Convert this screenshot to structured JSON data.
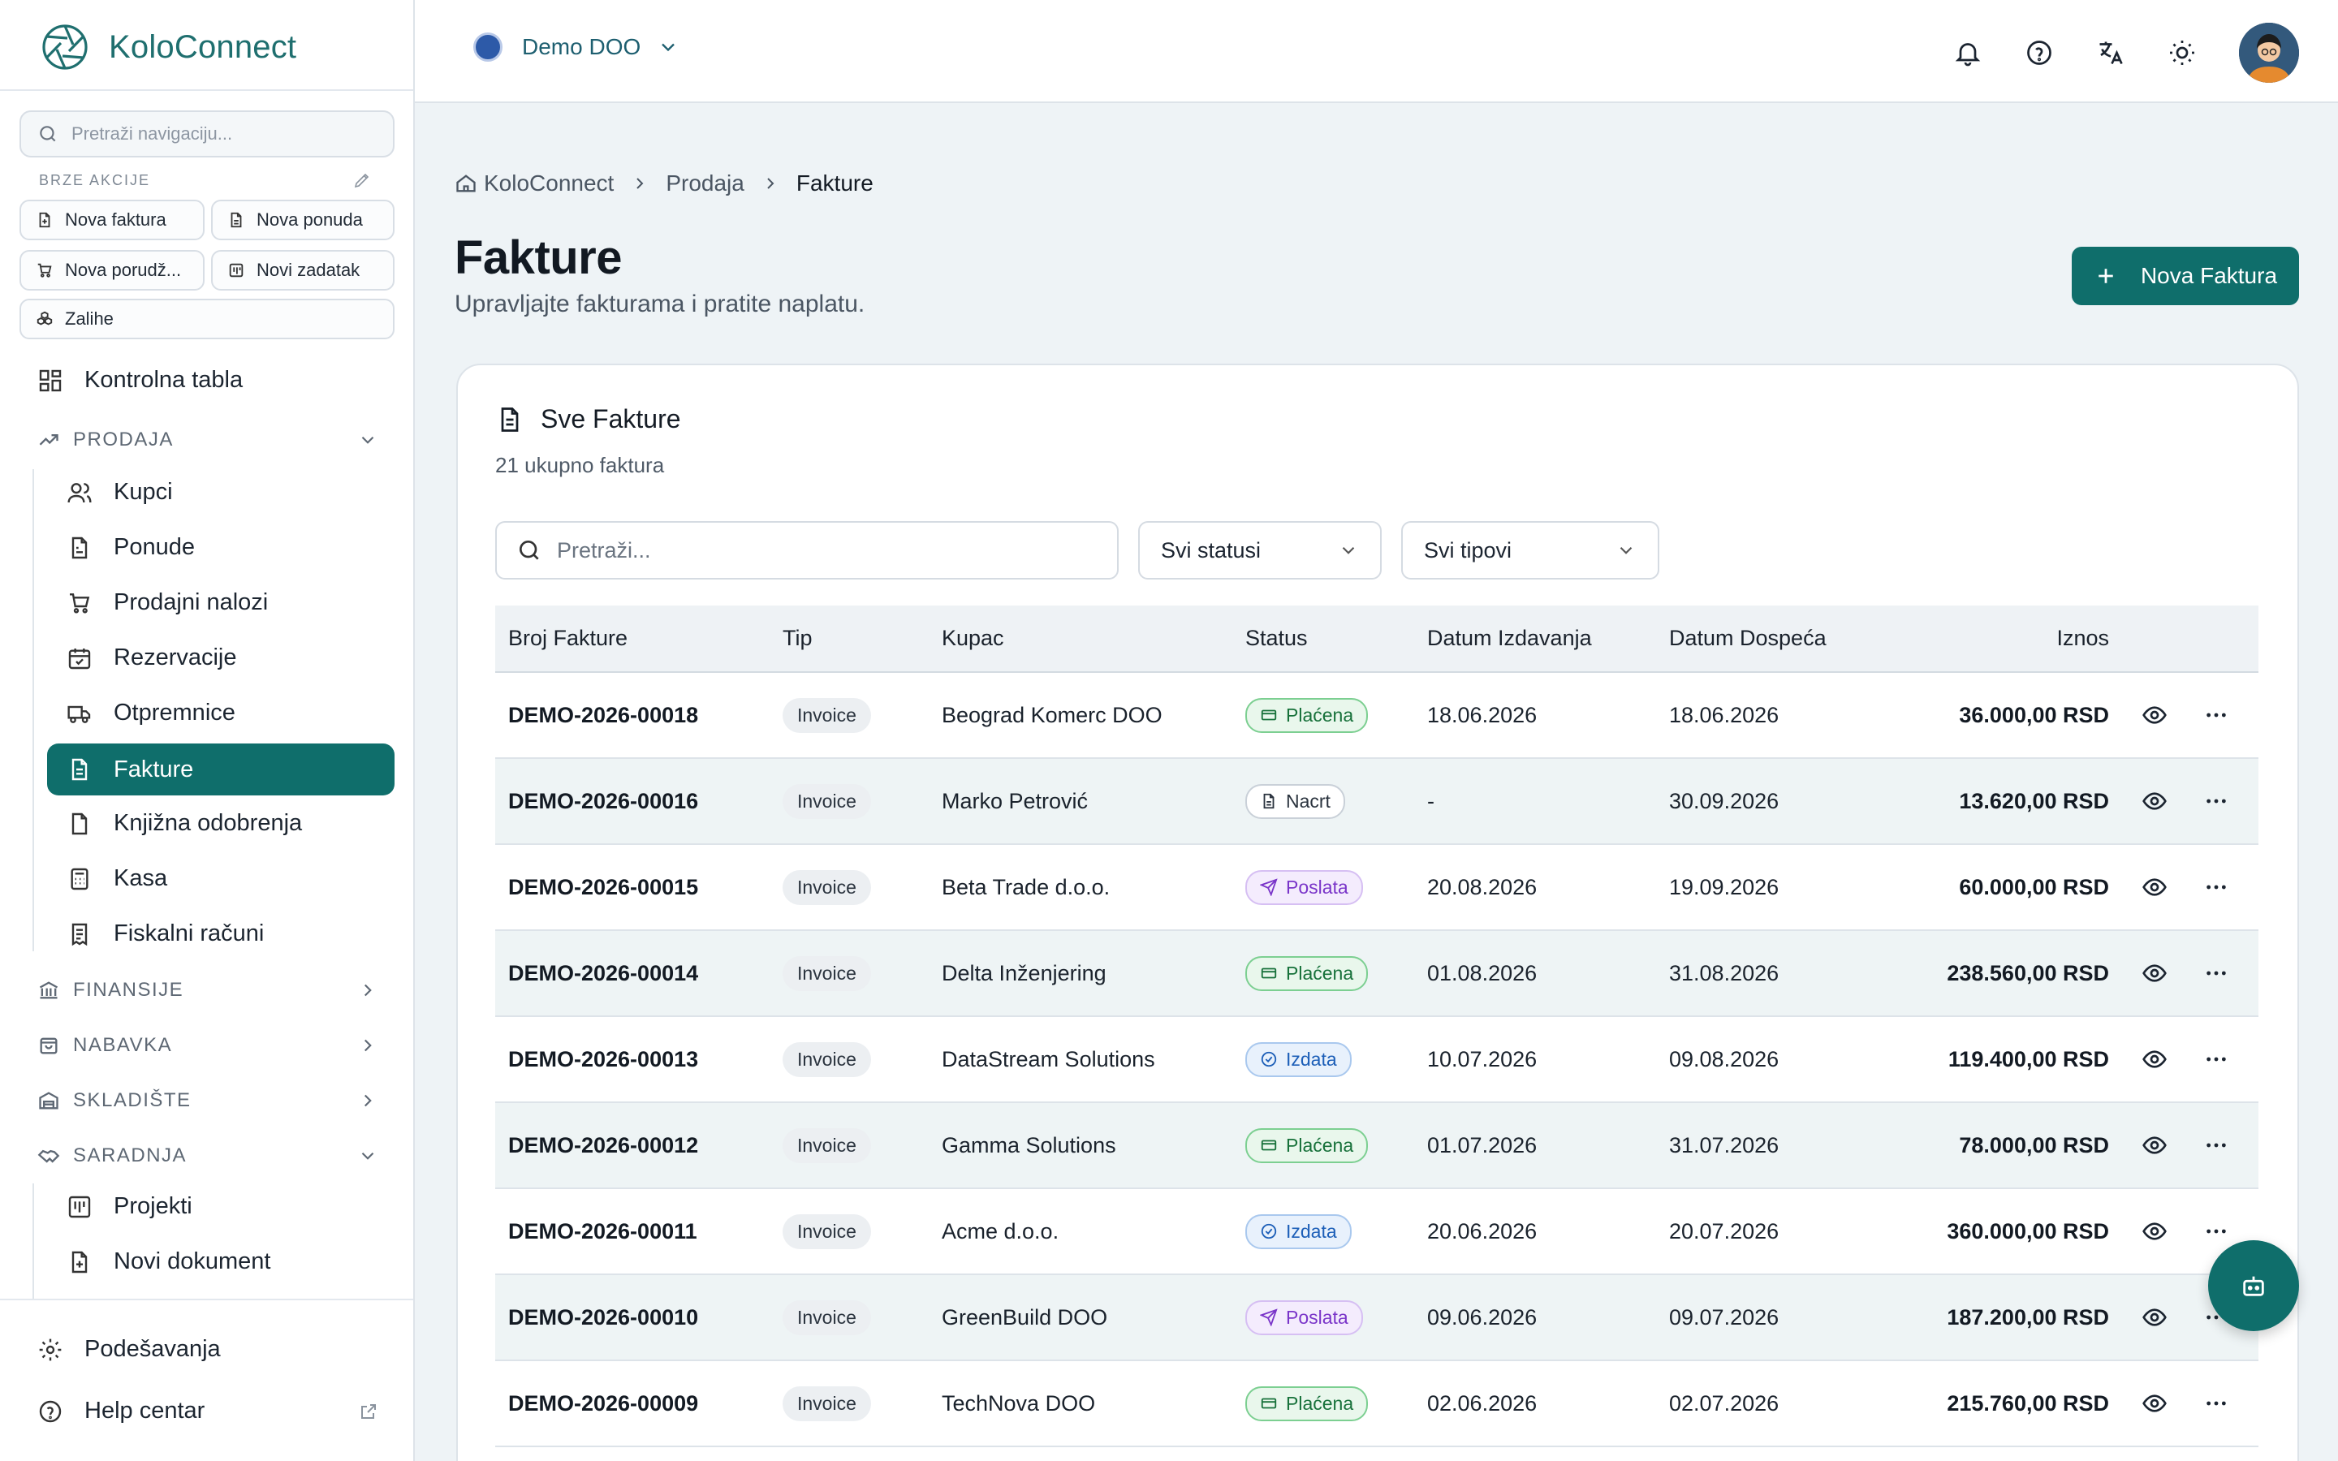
{
  "brand": {
    "name": "KoloConnect"
  },
  "sidebar": {
    "search_placeholder": "Pretraži navigaciju...",
    "quick_actions_label": "BRZE AKCIJE",
    "quick_actions": [
      {
        "label": "Nova faktura",
        "icon": "file-plus-icon"
      },
      {
        "label": "Nova ponuda",
        "icon": "file-icon"
      },
      {
        "label": "Nova porudž...",
        "icon": "cart-icon"
      },
      {
        "label": "Novi zadatak",
        "icon": "kanban-icon"
      },
      {
        "label": "Zalihe",
        "icon": "boxes-icon"
      }
    ],
    "dashboard": "Kontrolna tabla",
    "groups": {
      "prodaja": "PRODAJA",
      "finansije": "FINANSIJE",
      "nabavka": "NABAVKA",
      "skladiste": "SKLADIŠTE",
      "saradnja": "SARADNJA"
    },
    "prodaja_items": [
      "Kupci",
      "Ponude",
      "Prodajni nalozi",
      "Rezervacije",
      "Otpremnice",
      "Fakture",
      "Knjižna odobrenja",
      "Kasa",
      "Fiskalni računi"
    ],
    "saradnja_items": [
      "Projekti",
      "Novi dokument"
    ],
    "settings": "Podešavanja",
    "help": "Help centar"
  },
  "topbar": {
    "org_name": "Demo DOO"
  },
  "breadcrumb": [
    "KoloConnect",
    "Prodaja",
    "Fakture"
  ],
  "page": {
    "title": "Fakture",
    "subtitle": "Upravljajte fakturama i pratite naplatu.",
    "new_button": "Nova Faktura"
  },
  "card": {
    "title": "Sve Fakture",
    "count_text": "21 ukupno faktura",
    "search_placeholder": "Pretraži...",
    "status_filter": "Svi statusi",
    "type_filter": "Svi tipovi"
  },
  "table": {
    "columns": [
      "Broj Fakture",
      "Tip",
      "Kupac",
      "Status",
      "Datum Izdavanja",
      "Datum Dospeća",
      "Iznos"
    ],
    "rows": [
      {
        "number": "DEMO-2026-00018",
        "type": "Invoice",
        "customer": "Beograd Komerc DOO",
        "status": "Plaćena",
        "status_kind": "paid",
        "issued": "18.06.2026",
        "due": "18.06.2026",
        "amount": "36.000,00 RSD"
      },
      {
        "number": "DEMO-2026-00016",
        "type": "Invoice",
        "customer": "Marko Petrović",
        "status": "Nacrt",
        "status_kind": "draft",
        "issued": "-",
        "due": "30.09.2026",
        "amount": "13.620,00 RSD"
      },
      {
        "number": "DEMO-2026-00015",
        "type": "Invoice",
        "customer": "Beta Trade d.o.o.",
        "status": "Poslata",
        "status_kind": "sent",
        "issued": "20.08.2026",
        "due": "19.09.2026",
        "amount": "60.000,00 RSD"
      },
      {
        "number": "DEMO-2026-00014",
        "type": "Invoice",
        "customer": "Delta Inženjering",
        "status": "Plaćena",
        "status_kind": "paid",
        "issued": "01.08.2026",
        "due": "31.08.2026",
        "amount": "238.560,00 RSD"
      },
      {
        "number": "DEMO-2026-00013",
        "type": "Invoice",
        "customer": "DataStream Solutions",
        "status": "Izdata",
        "status_kind": "issued",
        "issued": "10.07.2026",
        "due": "09.08.2026",
        "amount": "119.400,00 RSD"
      },
      {
        "number": "DEMO-2026-00012",
        "type": "Invoice",
        "customer": "Gamma Solutions",
        "status": "Plaćena",
        "status_kind": "paid",
        "issued": "01.07.2026",
        "due": "31.07.2026",
        "amount": "78.000,00 RSD"
      },
      {
        "number": "DEMO-2026-00011",
        "type": "Invoice",
        "customer": "Acme d.o.o.",
        "status": "Izdata",
        "status_kind": "issued",
        "issued": "20.06.2026",
        "due": "20.07.2026",
        "amount": "360.000,00 RSD"
      },
      {
        "number": "DEMO-2026-00010",
        "type": "Invoice",
        "customer": "GreenBuild DOO",
        "status": "Poslata",
        "status_kind": "sent",
        "issued": "09.06.2026",
        "due": "09.07.2026",
        "amount": "187.200,00 RSD"
      },
      {
        "number": "DEMO-2026-00009",
        "type": "Invoice",
        "customer": "TechNova DOO",
        "status": "Plaćena",
        "status_kind": "paid",
        "issued": "02.06.2026",
        "due": "02.07.2026",
        "amount": "215.760,00 RSD"
      }
    ]
  },
  "colors": {
    "accent": "#0f6e6b",
    "paid": "#17713a",
    "sent": "#7a35c9",
    "issued": "#1d5fb8"
  }
}
